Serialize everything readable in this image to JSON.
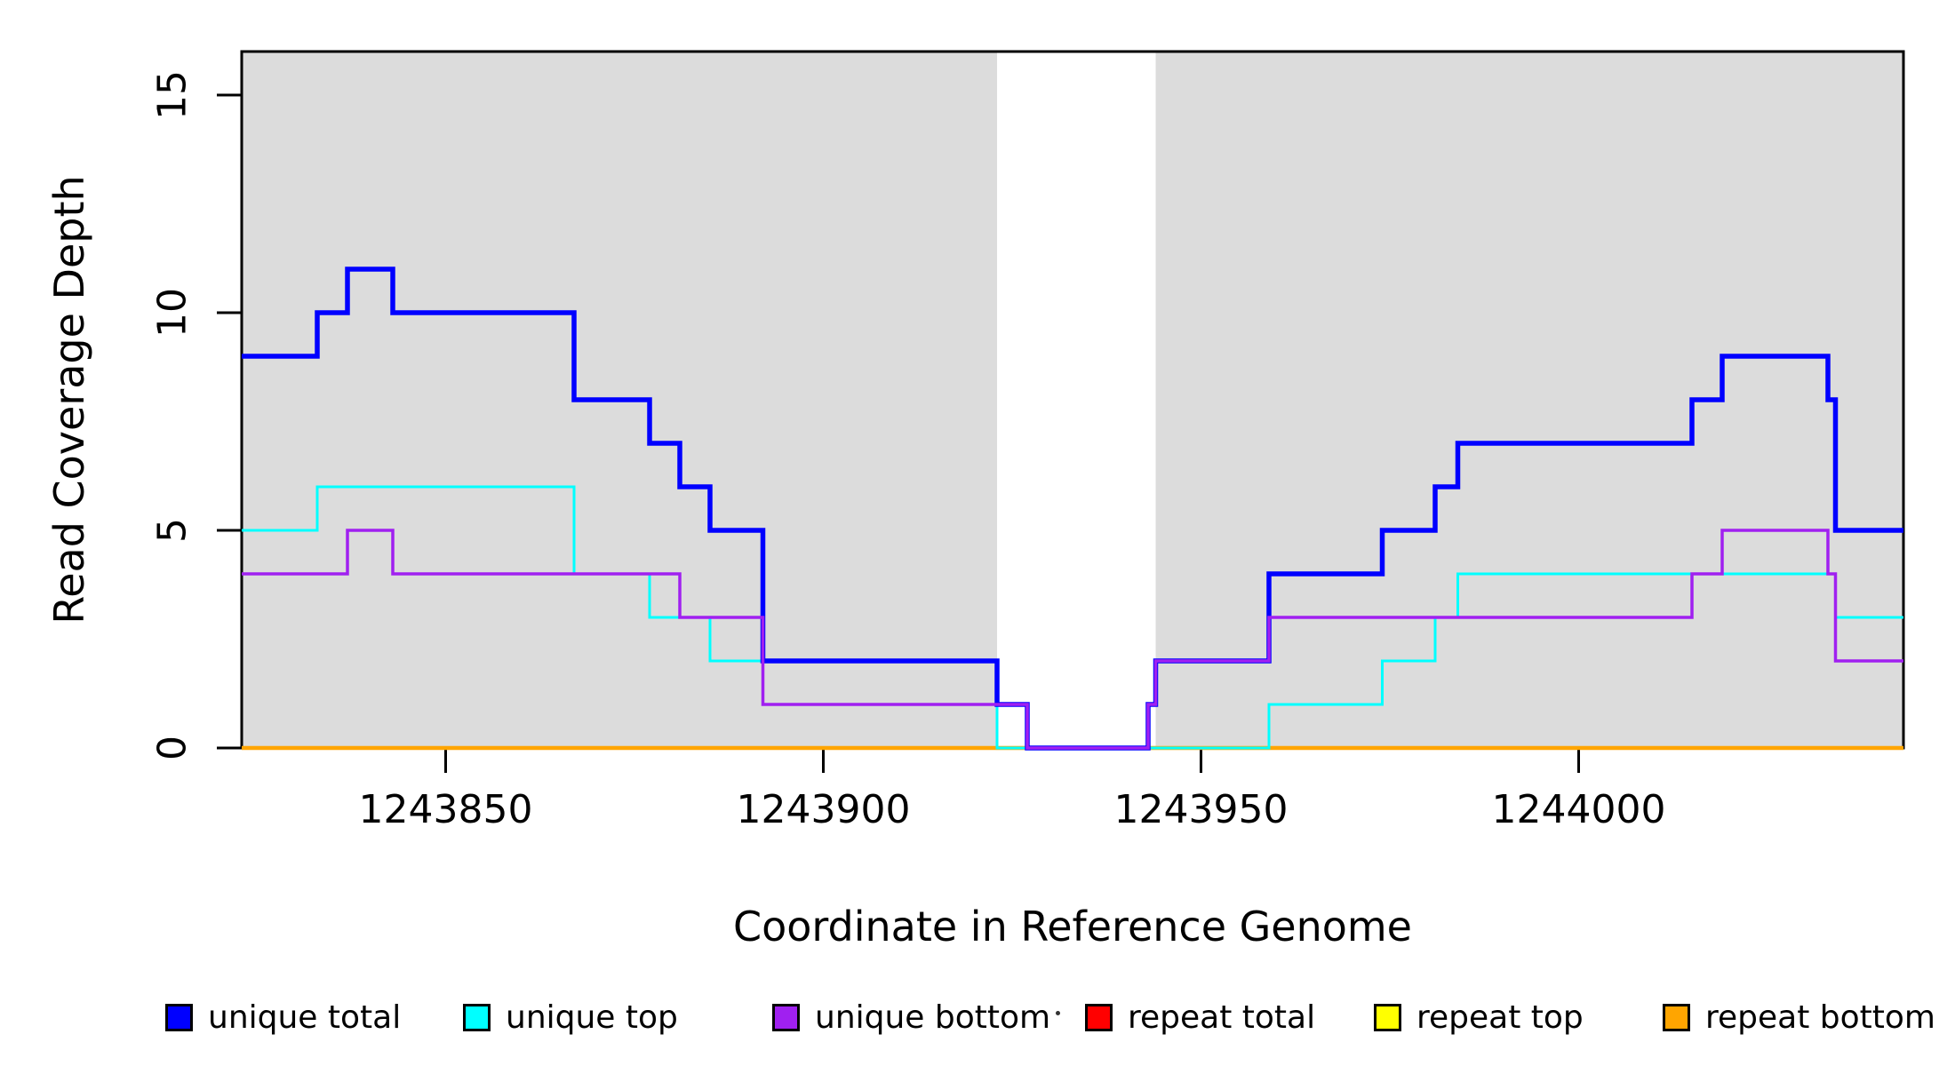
{
  "figure": {
    "xlabel": "Coordinate in Reference Genome",
    "ylabel": "Read Coverage Depth"
  },
  "chart_data": {
    "type": "step-line",
    "title": "",
    "xlabel": "Coordinate in Reference Genome",
    "ylabel": "Read Coverage Depth",
    "x_axis": {
      "min": 1243823,
      "max": 1244043,
      "tick_values": [
        1243850,
        1243900,
        1243950,
        1244000
      ],
      "tick_labels": [
        "1243850",
        "1243900",
        "1243950",
        "1244000"
      ]
    },
    "y_axis": {
      "min": 0,
      "max": 16,
      "tick_values": [
        0,
        5,
        10,
        15
      ],
      "tick_labels": [
        "0",
        "5",
        "10",
        "15"
      ]
    },
    "background_regions": [
      {
        "name": "shaded-region-left",
        "x1": 1243823,
        "x2": 1243923,
        "color": "#DCDCDC"
      },
      {
        "name": "shaded-region-right",
        "x1": 1243944,
        "x2": 1244043,
        "color": "#DCDCDC"
      }
    ],
    "series": [
      {
        "name": "repeat total",
        "color": "#FF0000",
        "line_width": 3,
        "steps": [
          [
            1243823,
            0
          ]
        ]
      },
      {
        "name": "repeat top",
        "color": "#FFFF00",
        "line_width": 3,
        "steps": [
          [
            1243823,
            0
          ]
        ]
      },
      {
        "name": "repeat bottom",
        "color": "#FFA500",
        "line_width": 4.5,
        "steps": [
          [
            1243823,
            0
          ]
        ]
      },
      {
        "name": "unique top",
        "color": "#00FFFF",
        "line_width": 3,
        "steps": [
          [
            1243823,
            5
          ],
          [
            1243833,
            6
          ],
          [
            1243867,
            4
          ],
          [
            1243877,
            3
          ],
          [
            1243885,
            2
          ],
          [
            1243892,
            1
          ],
          [
            1243923,
            0
          ],
          [
            1243959,
            1
          ],
          [
            1243974,
            2
          ],
          [
            1243981,
            3
          ],
          [
            1243984,
            4
          ],
          [
            1244034,
            3
          ]
        ]
      },
      {
        "name": "unique total",
        "color": "#0000FF",
        "line_width": 5.5,
        "steps": [
          [
            1243823,
            9
          ],
          [
            1243833,
            10
          ],
          [
            1243837,
            11
          ],
          [
            1243843,
            10
          ],
          [
            1243867,
            8
          ],
          [
            1243877,
            7
          ],
          [
            1243881,
            6
          ],
          [
            1243885,
            5
          ],
          [
            1243892,
            2
          ],
          [
            1243923,
            1
          ],
          [
            1243927,
            0
          ],
          [
            1243943,
            1
          ],
          [
            1243944,
            2
          ],
          [
            1243959,
            4
          ],
          [
            1243974,
            5
          ],
          [
            1243981,
            6
          ],
          [
            1243984,
            7
          ],
          [
            1244015,
            8
          ],
          [
            1244019,
            9
          ],
          [
            1244033,
            8
          ],
          [
            1244034,
            5
          ]
        ]
      },
      {
        "name": "unique bottom",
        "color": "#A020F0",
        "line_width": 3.5,
        "steps": [
          [
            1243823,
            4
          ],
          [
            1243837,
            5
          ],
          [
            1243843,
            4
          ],
          [
            1243881,
            3
          ],
          [
            1243892,
            1
          ],
          [
            1243927,
            0
          ],
          [
            1243943,
            1
          ],
          [
            1243944,
            2
          ],
          [
            1243959,
            3
          ],
          [
            1244015,
            4
          ],
          [
            1244019,
            5
          ],
          [
            1244033,
            4
          ],
          [
            1244034,
            2
          ]
        ]
      }
    ],
    "legend": [
      {
        "label": "unique total",
        "color": "#0000FF"
      },
      {
        "label": "unique top",
        "color": "#00FFFF"
      },
      {
        "label": "unique bottom",
        "color": "#A020F0"
      },
      {
        "label": "repeat total",
        "color": "#FF0000"
      },
      {
        "label": "repeat top",
        "color": "#FFFF00"
      },
      {
        "label": "repeat bottom",
        "color": "#FFA500"
      }
    ],
    "stray_mark": "."
  }
}
